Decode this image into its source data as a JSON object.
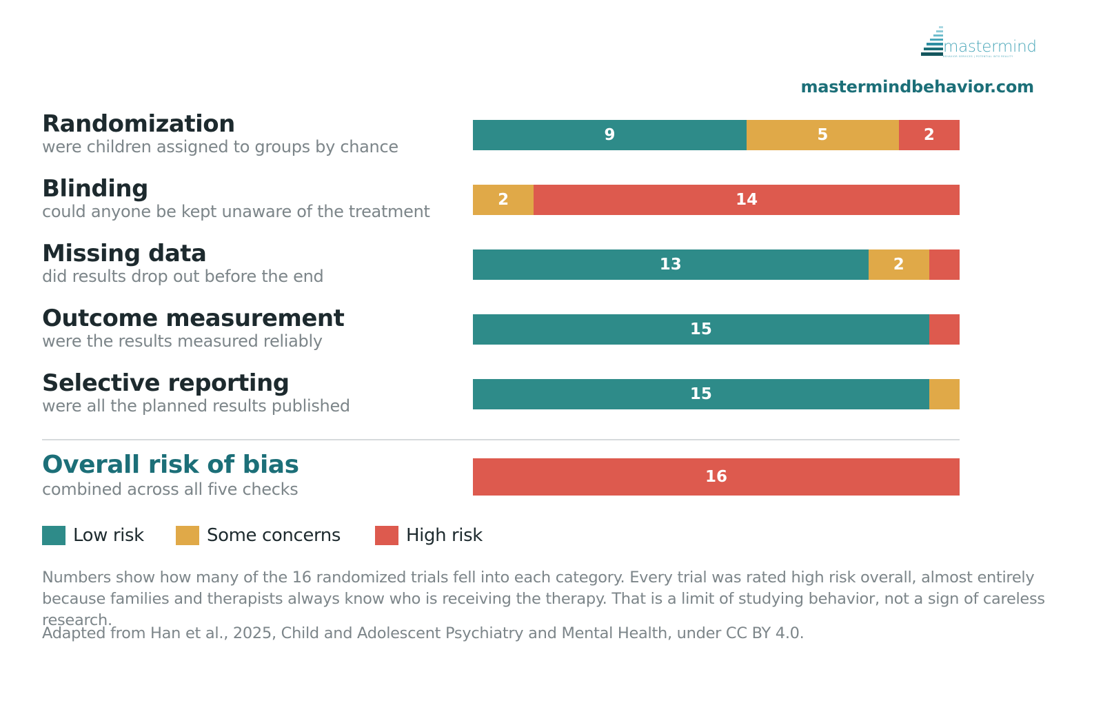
{
  "brand": {
    "logo_word": "mastermind",
    "logo_tagline": "BEHAVIOR SERVICES | POTENTIAL INTO REALITY",
    "site": "mastermindbehavior.com",
    "logo_icon": "stairs-icon"
  },
  "colors": {
    "low": "#2e8b89",
    "some": "#e0a948",
    "high": "#dd5a4e",
    "title": "#1d2a2e",
    "accent": "#1c6f78",
    "muted": "#7c8589"
  },
  "chart_data": {
    "type": "bar",
    "orientation": "horizontal",
    "stacked": true,
    "xlim": [
      0,
      16
    ],
    "categories": [
      {
        "title": "Randomization",
        "subtitle": "were children assigned to groups by chance"
      },
      {
        "title": "Blinding",
        "subtitle": "could anyone be kept unaware of the treatment"
      },
      {
        "title": "Missing data",
        "subtitle": "did results drop out before the end"
      },
      {
        "title": "Outcome measurement",
        "subtitle": "were the results measured reliably"
      },
      {
        "title": "Selective reporting",
        "subtitle": "were all the planned results published"
      }
    ],
    "overall": {
      "title": "Overall risk of bias",
      "subtitle": "combined across all five checks",
      "values": [
        0,
        0,
        16
      ]
    },
    "series": [
      {
        "name": "Low risk",
        "color": "#2e8b89",
        "values": [
          9,
          0,
          13,
          15,
          15
        ]
      },
      {
        "name": "Some concerns",
        "color": "#e0a948",
        "values": [
          5,
          2,
          2,
          0,
          1
        ]
      },
      {
        "name": "High risk",
        "color": "#dd5a4e",
        "values": [
          2,
          14,
          1,
          1,
          0
        ]
      }
    ],
    "legend_position": "bottom-left"
  },
  "note": "Numbers show how many of the 16 randomized trials fell into each category. Every trial was rated high risk overall, almost entirely because families and therapists always know who is receiving the therapy. That is a limit of studying behavior, not a sign of careless research.",
  "credit": "Adapted from Han et al., 2025, Child and Adolescent Psychiatry and Mental Health, under CC BY 4.0."
}
